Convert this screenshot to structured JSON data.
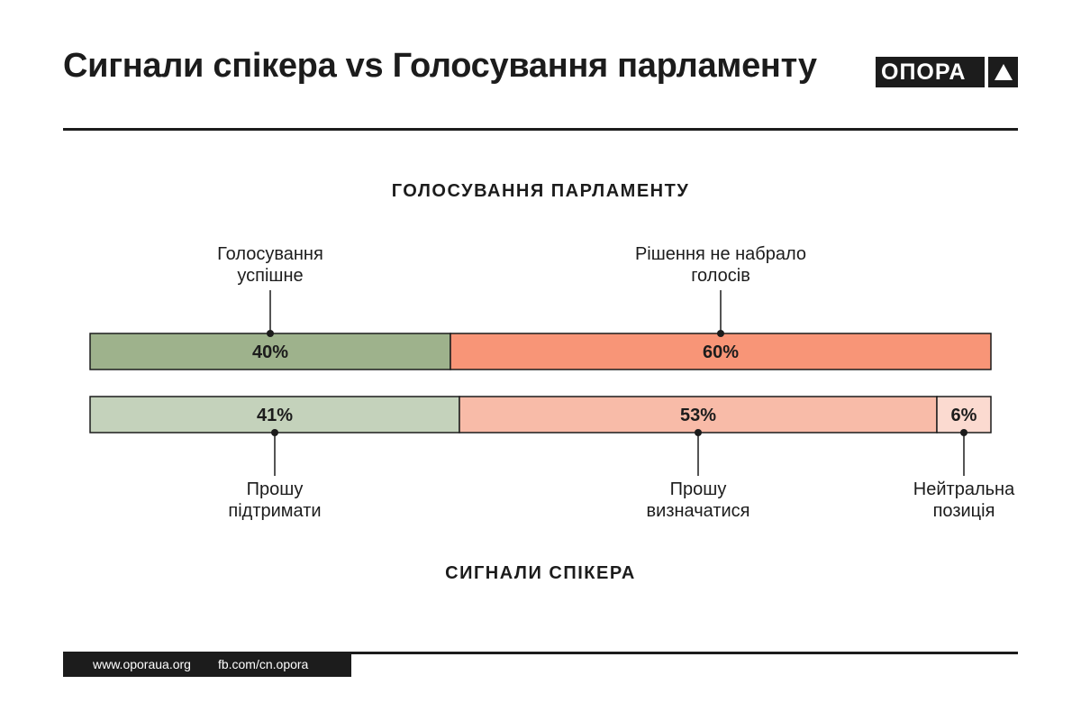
{
  "header": {
    "title": "Сигнали спікера vs Голосування парламенту",
    "logo_text": "ОПОРА"
  },
  "footer": {
    "website": "www.oporaua.org",
    "facebook": "fb.com/cn.opora"
  },
  "colors": {
    "dark": "#1c1c1c",
    "green_dark": "#9eb28c",
    "salmon_dark": "#f89577",
    "green_light": "#c4d2bb",
    "salmon_light": "#f8bba8",
    "neutral": "#fbdad0"
  },
  "chart_data": {
    "type": "bar",
    "stacked": true,
    "orientation": "horizontal",
    "units": "%",
    "bars": [
      {
        "name": "ГОЛОСУВАННЯ ПАРЛАМЕНТУ",
        "label_side": "top",
        "segments": [
          {
            "label": [
              "Голосування",
              "успішне"
            ],
            "value": 40,
            "color": "#9eb28c"
          },
          {
            "label": [
              "Рішення не набрало",
              "голосів"
            ],
            "value": 60,
            "color": "#f89577"
          }
        ]
      },
      {
        "name": "СИГНАЛИ СПІКЕРА",
        "label_side": "bottom",
        "segments": [
          {
            "label": [
              "Прошу",
              "підтримати"
            ],
            "value": 41,
            "color": "#c4d2bb"
          },
          {
            "label": [
              "Прошу",
              "визначатися"
            ],
            "value": 53,
            "color": "#f8bba8"
          },
          {
            "label": [
              "Нейтральна",
              "позиція"
            ],
            "value": 6,
            "color": "#fbdad0"
          }
        ]
      }
    ]
  }
}
